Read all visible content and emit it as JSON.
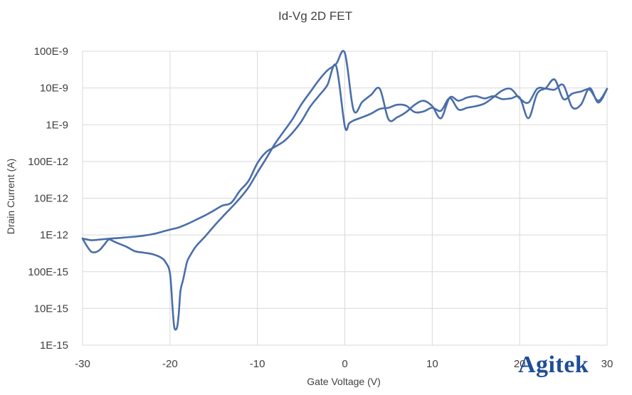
{
  "chart_data": {
    "type": "line",
    "title": "Id-Vg 2D FET",
    "xlabel": "Gate Voltage (V)",
    "ylabel": "Drain Current (A)",
    "xlim": [
      -30,
      30
    ],
    "ylim": [
      1e-15,
      1e-07
    ],
    "yscale": "log",
    "grid": true,
    "legend": "none",
    "line_color": "#4a6ea9",
    "x_ticks": [
      -30,
      -20,
      -10,
      0,
      10,
      20,
      30
    ],
    "x_tick_labels": [
      "-30",
      "-20",
      "-10",
      "0",
      "10",
      "20",
      "30"
    ],
    "y_ticks": [
      1e-07,
      1e-08,
      1e-09,
      1e-10,
      1e-11,
      1e-12,
      1e-13,
      1e-14,
      1e-15
    ],
    "y_tick_labels": [
      "100E-9",
      "10E-9",
      "1E-9",
      "100E-12",
      "10E-12",
      "1E-12",
      "100E-15",
      "10E-15",
      "1E-15"
    ],
    "series": [
      {
        "x": [
          -30,
          -29.5,
          -29,
          -28.5,
          -28,
          -27.5,
          -27,
          -26.5,
          -26,
          -25,
          -24,
          -23,
          -22,
          -21,
          -20.5,
          -20,
          -19.7,
          -19.5,
          -19.2,
          -19,
          -18.8,
          -18.5,
          -18.2,
          -18,
          -17.5,
          -17,
          -16,
          -15,
          -14,
          -13,
          -12,
          -11,
          -10,
          -9,
          -8,
          -7,
          -6,
          -5,
          -4,
          -3,
          -2,
          -1,
          0,
          1,
          2,
          3,
          4,
          5,
          6,
          7,
          8,
          9,
          10,
          11,
          12,
          13,
          14,
          15,
          16,
          17,
          18,
          19,
          20,
          21,
          22,
          23,
          24,
          25,
          26,
          27,
          28,
          29,
          30
        ],
        "y": [
          8e-13,
          5e-13,
          3.5e-13,
          3.4e-13,
          4e-13,
          5.5e-13,
          7.5e-13,
          6.8e-13,
          6e-13,
          4.8e-13,
          3.6e-13,
          3.3e-13,
          3e-13,
          2.4e-13,
          1.8e-13,
          9e-14,
          1e-14,
          3e-15,
          3e-15,
          7e-15,
          3e-14,
          6e-14,
          1.3e-13,
          2e-13,
          3.3e-13,
          5e-13,
          9e-13,
          1.7e-12,
          3.1e-12,
          5.5e-12,
          1e-11,
          2e-11,
          5e-11,
          1.2e-10,
          3e-10,
          6.5e-10,
          1.4e-09,
          3.5e-09,
          7.5e-09,
          1.6e-08,
          3e-08,
          4.5e-08,
          9e-08,
          2.5e-09,
          4.2e-09,
          6.5e-09,
          9.5e-09,
          1.4e-09,
          1.6e-09,
          2.2e-09,
          3.5e-09,
          4.5e-09,
          3.2e-09,
          1.5e-09,
          5.5e-09,
          4.5e-09,
          5.5e-09,
          6e-09,
          5.2e-09,
          6e-09,
          5e-09,
          5.2e-09,
          5.5e-09,
          1.5e-09,
          7e-09,
          1e-08,
          1.7e-08,
          5e-09,
          7e-09,
          8e-09,
          9e-09,
          4.5e-09,
          9.5e-09
        ]
      },
      {
        "x": [
          -30,
          -29,
          -28,
          -27,
          -26,
          -25,
          -24,
          -23,
          -22,
          -21,
          -20,
          -19,
          -18,
          -17,
          -16,
          -15,
          -14,
          -13,
          -12,
          -11,
          -10,
          -9,
          -8,
          -7,
          -6,
          -5,
          -4,
          -3,
          -2,
          -1,
          0,
          0.5,
          1,
          2,
          3,
          4,
          5,
          6,
          7,
          8,
          9,
          10,
          11,
          12,
          13,
          14,
          15,
          16,
          17,
          18,
          19,
          20,
          21,
          22,
          23,
          24,
          25,
          26,
          27,
          28,
          29,
          30
        ],
        "y": [
          8e-13,
          7.2e-13,
          7.5e-13,
          7.9e-13,
          8.2e-13,
          8.6e-13,
          9e-13,
          9.6e-13,
          1.05e-12,
          1.2e-12,
          1.4e-12,
          1.6e-12,
          2e-12,
          2.6e-12,
          3.4e-12,
          4.6e-12,
          6.3e-12,
          7.5e-12,
          1.6e-11,
          3e-11,
          9e-11,
          1.8e-10,
          2.5e-10,
          3.5e-10,
          6e-10,
          1.2e-09,
          3e-09,
          6e-09,
          1.2e-08,
          4e-08,
          9e-10,
          1.1e-09,
          1.3e-09,
          1.6e-09,
          2e-09,
          2.7e-09,
          2.9e-09,
          3.5e-09,
          3.3e-09,
          2.2e-09,
          2.3e-09,
          2.9e-09,
          2.4e-09,
          5.3e-09,
          2.6e-09,
          2.9e-09,
          3.2e-09,
          3.8e-09,
          5.6e-09,
          8.5e-09,
          9.4e-09,
          5.2e-09,
          4e-09,
          9.5e-09,
          9.6e-09,
          9e-09,
          1.2e-08,
          3e-09,
          3.5e-09,
          1e-08,
          4e-09,
          9.5e-09
        ]
      }
    ]
  },
  "watermark": {
    "text": "Agitek",
    "color": "#1f4e96"
  }
}
